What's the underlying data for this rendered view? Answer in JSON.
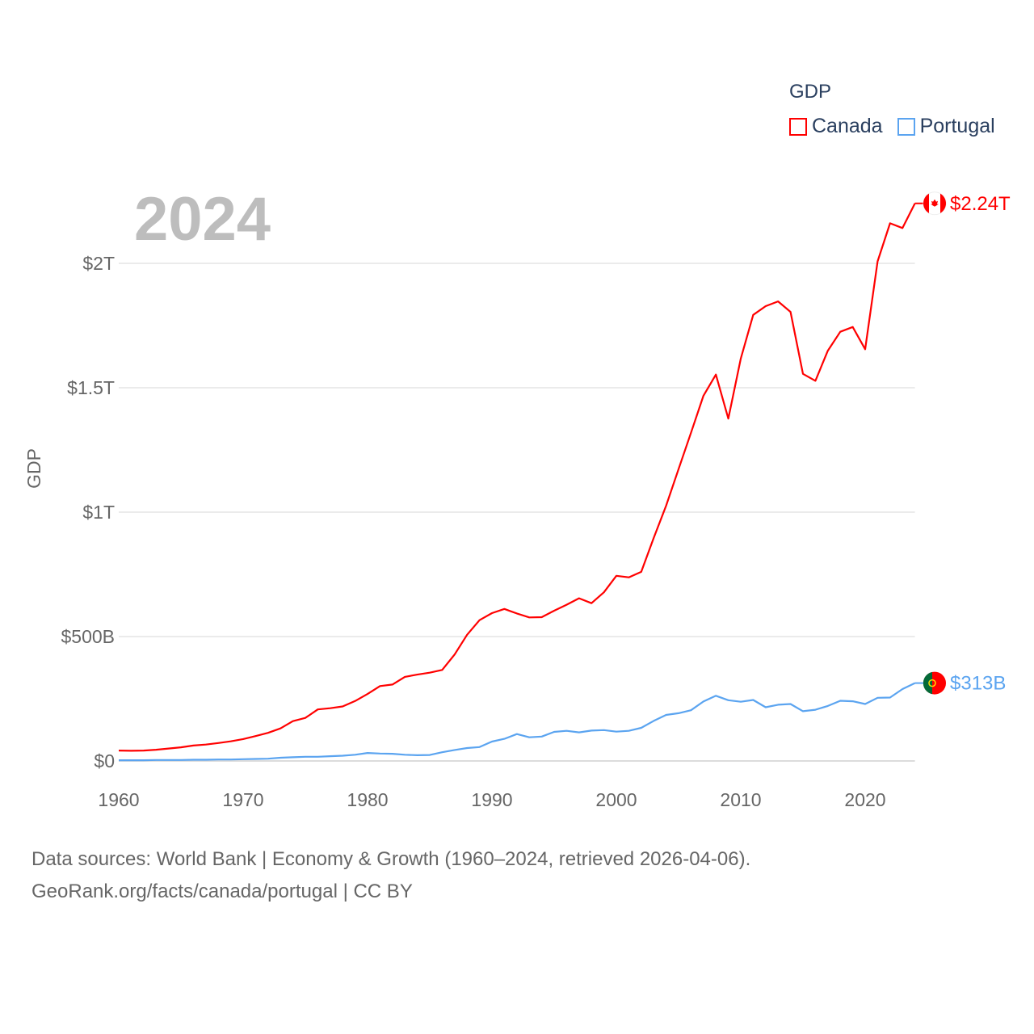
{
  "chart_data": {
    "type": "line",
    "title": "GDP",
    "year_label": "2024",
    "xlabel": "",
    "ylabel": "GDP",
    "xlim": [
      1960,
      2024
    ],
    "ylim": [
      0,
      2000
    ],
    "y_unit": "billion USD",
    "x_ticks": [
      "1960",
      "1970",
      "1980",
      "1990",
      "2000",
      "2010",
      "2020"
    ],
    "y_ticks": [
      {
        "value": 0,
        "label": "$0"
      },
      {
        "value": 500,
        "label": "$500B"
      },
      {
        "value": 1000,
        "label": "$1T"
      },
      {
        "value": 1500,
        "label": "$1.5T"
      },
      {
        "value": 2000,
        "label": "$2T"
      }
    ],
    "grid": true,
    "legend_placement": "top-right",
    "x": [
      1960,
      1961,
      1962,
      1963,
      1964,
      1965,
      1966,
      1967,
      1968,
      1969,
      1970,
      1971,
      1972,
      1973,
      1974,
      1975,
      1976,
      1977,
      1978,
      1979,
      1980,
      1981,
      1982,
      1983,
      1984,
      1985,
      1986,
      1987,
      1988,
      1989,
      1990,
      1991,
      1992,
      1993,
      1994,
      1995,
      1996,
      1997,
      1998,
      1999,
      2000,
      2001,
      2002,
      2003,
      2004,
      2005,
      2006,
      2007,
      2008,
      2009,
      2010,
      2011,
      2012,
      2013,
      2014,
      2015,
      2016,
      2017,
      2018,
      2019,
      2020,
      2021,
      2022,
      2023,
      2024
    ],
    "series": [
      {
        "name": "Canada",
        "color": "#ff0000",
        "end_label": "$2.24T",
        "values": [
          42,
          41,
          42,
          45,
          50,
          55,
          62,
          66,
          72,
          79,
          88,
          100,
          113,
          131,
          160,
          173,
          207,
          212,
          219,
          241,
          269,
          301,
          307,
          338,
          347,
          355,
          366,
          428,
          507,
          566,
          594,
          611,
          593,
          577,
          578,
          604,
          628,
          654,
          634,
          678,
          744,
          738,
          760,
          896,
          1026,
          1173,
          1319,
          1468,
          1553,
          1376,
          1617,
          1793,
          1828,
          1847,
          1805,
          1556,
          1528,
          1649,
          1725,
          1744,
          1655,
          2008,
          2161,
          2142,
          2241
        ]
      },
      {
        "name": "Portugal",
        "color": "#5ba4f0",
        "end_label": "$313B",
        "values": [
          3,
          3,
          3,
          4,
          4,
          4,
          5,
          5,
          6,
          6,
          7,
          8,
          9,
          13,
          15,
          17,
          17,
          19,
          21,
          25,
          32,
          30,
          29,
          25,
          23,
          24,
          35,
          44,
          52,
          56,
          78,
          89,
          108,
          95,
          98,
          117,
          121,
          115,
          122,
          124,
          118,
          121,
          133,
          161,
          185,
          192,
          204,
          239,
          262,
          244,
          238,
          245,
          216,
          226,
          229,
          200,
          206,
          221,
          242,
          240,
          229,
          254,
          255,
          289,
          313
        ]
      }
    ]
  },
  "source": {
    "line1": "Data sources: World Bank | Economy & Growth (1960–2024, retrieved 2026-04-06).",
    "line2": "GeoRank.org/facts/canada/portugal | CC BY"
  }
}
